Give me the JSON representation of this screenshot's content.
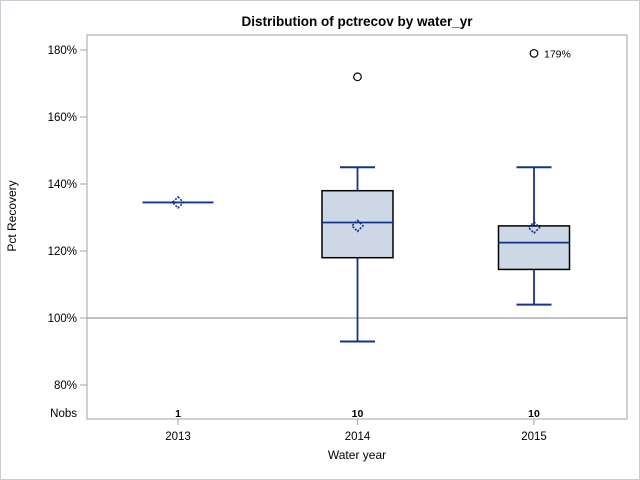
{
  "title": "Distribution of pctrecov by water_yr",
  "chart_data": {
    "type": "boxplot",
    "title": "Distribution of pctrecov by water_yr",
    "xlabel": "Water year",
    "ylabel": "Pct Recovery",
    "nobs_label": "Nobs",
    "y_tick_format": "percent",
    "y_ticks": [
      {
        "value": 80,
        "label": "80%"
      },
      {
        "value": 100,
        "label": "100%"
      },
      {
        "value": 120,
        "label": "120%"
      },
      {
        "value": 140,
        "label": "140%"
      },
      {
        "value": 160,
        "label": "160%"
      },
      {
        "value": 180,
        "label": "180%"
      }
    ],
    "ylim": [
      78,
      184
    ],
    "reference_line": 100,
    "grid": "off",
    "categories": [
      "2013",
      "2014",
      "2015"
    ],
    "series": [
      {
        "category": "2013",
        "nobs": "1",
        "min": 134.5,
        "q1": 134.5,
        "median": 134.5,
        "q3": 134.5,
        "max": 134.5,
        "mean": 134.5,
        "outliers": []
      },
      {
        "category": "2014",
        "nobs": "10",
        "min": 93,
        "q1": 118,
        "median": 128.5,
        "q3": 138,
        "max": 145,
        "mean": 127.5,
        "outliers": [
          {
            "value": 172,
            "label": ""
          }
        ]
      },
      {
        "category": "2015",
        "nobs": "10",
        "min": 104,
        "q1": 114.5,
        "median": 122.5,
        "q3": 127.5,
        "max": 145,
        "mean": 127,
        "outliers": [
          {
            "value": 179,
            "label": "179%"
          }
        ]
      }
    ],
    "colors": {
      "box_fill": "#cdd7e6",
      "box_border": "#000000",
      "line": "#14338f",
      "frame": "#a0a3a8",
      "reference_line": "#979da4",
      "outlier_stroke": "#000000",
      "text": "#000000",
      "background": "#ffffff",
      "outer_border": "#c8ccd3"
    }
  }
}
